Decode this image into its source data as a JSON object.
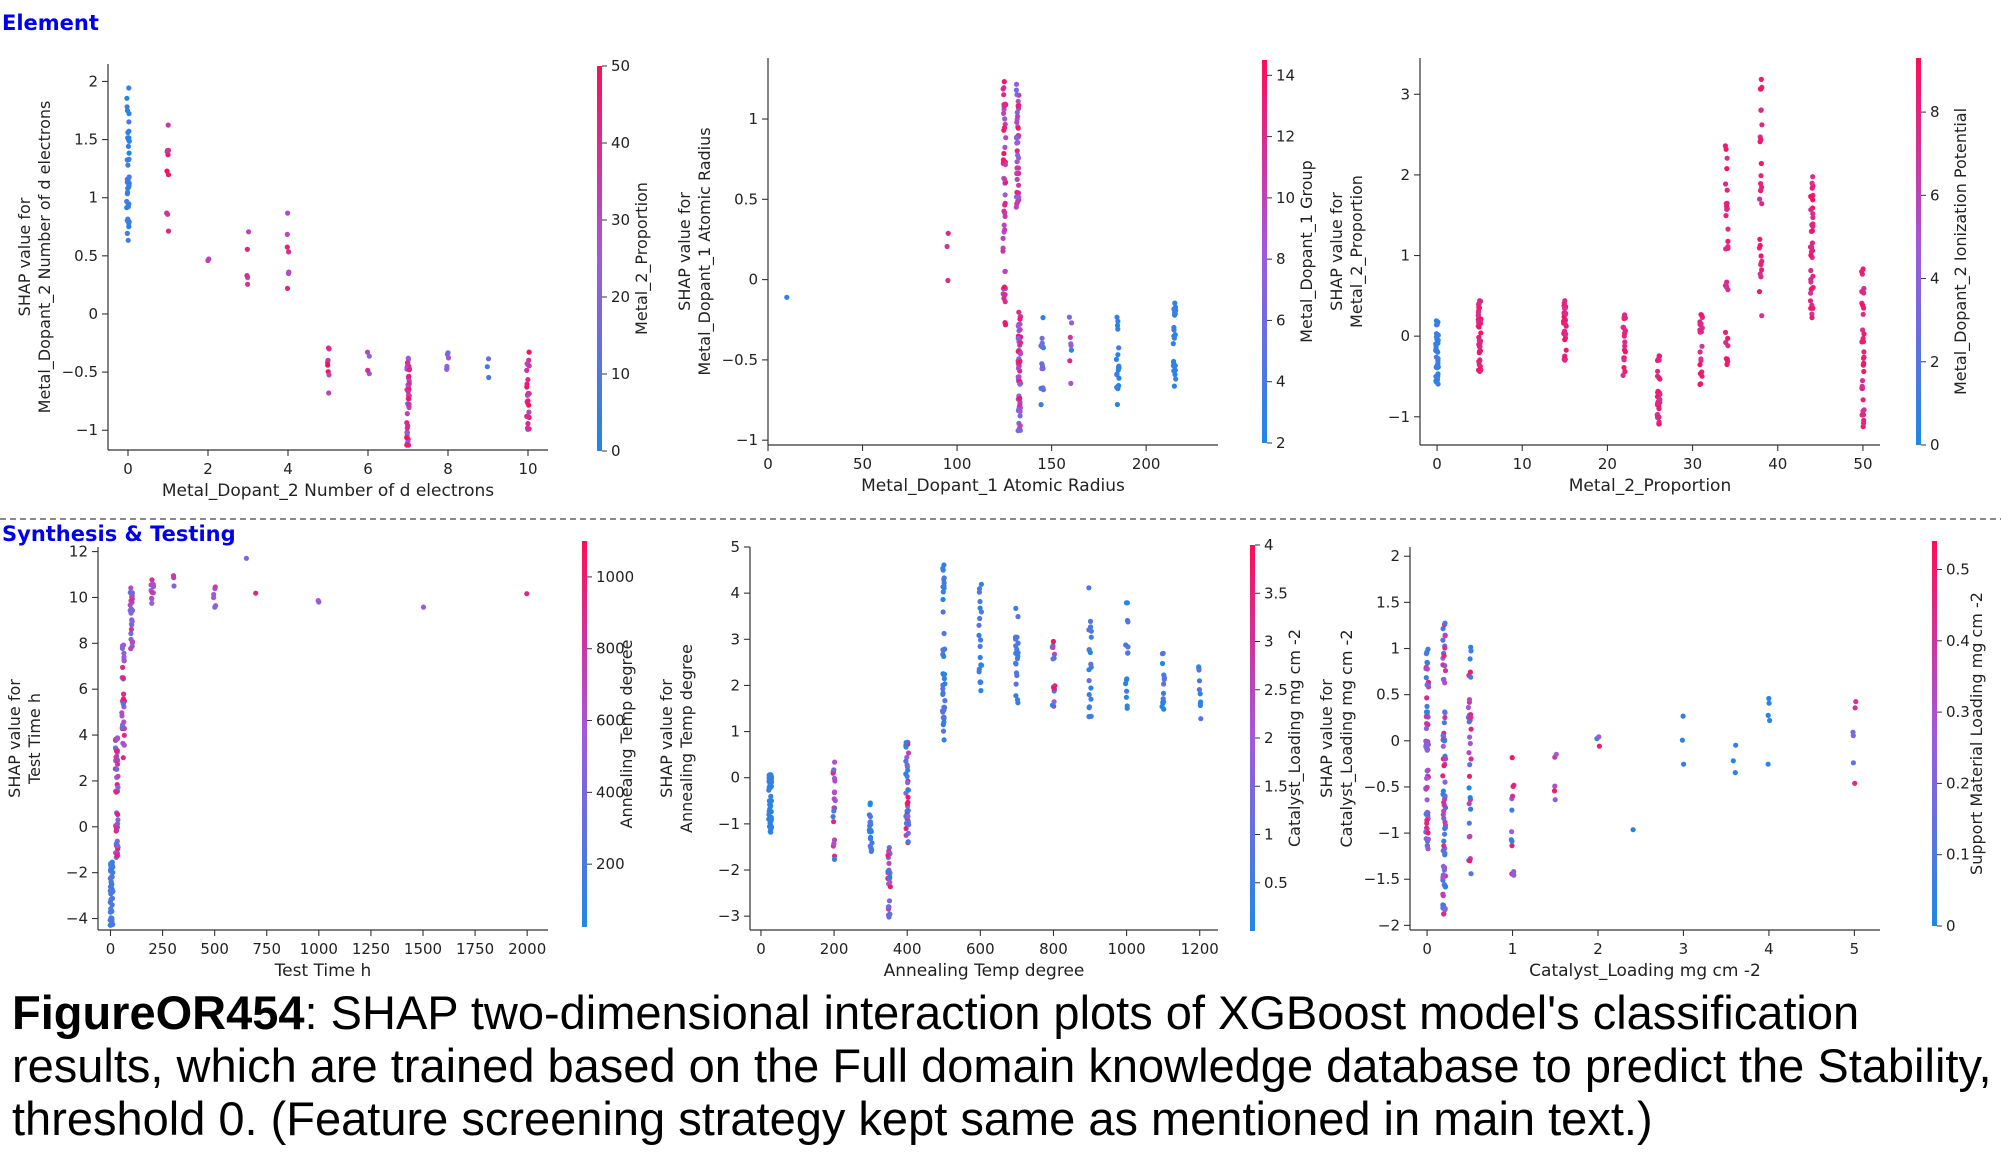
{
  "sections": [
    {
      "label": "Element",
      "color": "#0000ee"
    },
    {
      "label": "Synthesis & Testing",
      "color": "#0000ee"
    }
  ],
  "caption": {
    "bold": "FigureOR454",
    "text": ": SHAP two-dimensional interaction plots of XGBoost model's classification results, which are trained based on the Full domain knowledge database to predict the Stability, threshold 0. (Feature screening strategy kept same as mentioned in main text.)"
  },
  "colors": {
    "low": "#1e88e5",
    "high": "#ff0d57"
  },
  "chart_data": [
    {
      "type": "scatter",
      "xlabel": "Metal_Dopant_2 Number of d electrons",
      "ylabel": [
        "SHAP value for",
        "Metal_Dopant_2 Number of d electrons"
      ],
      "xlim": [
        -0.5,
        10.5
      ],
      "ylim": [
        -1.17,
        2.15
      ],
      "xticks": [
        0,
        2,
        4,
        6,
        8,
        10
      ],
      "yticks": [
        -1.0,
        -0.5,
        0.0,
        0.5,
        1.0,
        1.5,
        2.0
      ],
      "colorbar": {
        "label": "Metal_2_Proportion",
        "ticks": [
          0,
          10,
          20,
          30,
          40,
          50
        ],
        "range": [
          0,
          50
        ]
      },
      "clusters": [
        {
          "x": 0,
          "y": [
            0.5,
            1.95
          ],
          "c": [
            0,
            10
          ],
          "n": 40
        },
        {
          "x": 1,
          "y": [
            0.55,
            1.8
          ],
          "c": [
            30,
            50
          ],
          "n": 10
        },
        {
          "x": 2,
          "y": [
            0.45,
            0.52
          ],
          "c": [
            25,
            35
          ],
          "n": 2
        },
        {
          "x": 3,
          "y": [
            0.25,
            0.9
          ],
          "c": [
            25,
            45
          ],
          "n": 5
        },
        {
          "x": 4,
          "y": [
            0.15,
            0.88
          ],
          "c": [
            25,
            45
          ],
          "n": 7
        },
        {
          "x": 5,
          "y": [
            -0.7,
            -0.05
          ],
          "c": [
            30,
            50
          ],
          "n": 8
        },
        {
          "x": 6,
          "y": [
            -0.52,
            -0.32
          ],
          "c": [
            0,
            45
          ],
          "n": 4
        },
        {
          "x": 7,
          "y": [
            -1.15,
            -0.3
          ],
          "c": [
            15,
            50
          ],
          "n": 45
        },
        {
          "x": 8,
          "y": [
            -0.5,
            -0.32
          ],
          "c": [
            15,
            45
          ],
          "n": 6
        },
        {
          "x": 9,
          "y": [
            -0.55,
            -0.35
          ],
          "c": [
            5,
            20
          ],
          "n": 3
        },
        {
          "x": 10,
          "y": [
            -1.05,
            -0.3
          ],
          "c": [
            30,
            50
          ],
          "n": 25
        }
      ]
    },
    {
      "type": "scatter",
      "xlabel": "Metal_Dopant_1 Atomic Radius",
      "ylabel": [
        "SHAP value for",
        "Metal_Dopant_1 Atomic Radius"
      ],
      "xlim": [
        0,
        238
      ],
      "ylim": [
        -1.03,
        1.38
      ],
      "xticks": [
        0,
        50,
        100,
        150,
        200
      ],
      "yticks": [
        -1.0,
        -0.5,
        0.0,
        0.5,
        1.0
      ],
      "colorbar": {
        "label": "Metal_Dopant_1 Group",
        "ticks": [
          2,
          4,
          6,
          8,
          10,
          12,
          14
        ],
        "range": [
          2,
          14.5
        ]
      },
      "clusters": [
        {
          "x": 10,
          "y": [
            -0.14,
            -0.1
          ],
          "c": [
            2,
            3
          ],
          "n": 1
        },
        {
          "x": 95,
          "y": [
            -0.12,
            0.32
          ],
          "c": [
            11,
            13
          ],
          "n": 3
        },
        {
          "x": 125,
          "y": [
            -0.3,
            1.25
          ],
          "c": [
            8,
            14
          ],
          "n": 50
        },
        {
          "x": 132,
          "y": [
            0.45,
            1.28
          ],
          "c": [
            6,
            14
          ],
          "n": 40
        },
        {
          "x": 133,
          "y": [
            -0.95,
            -0.2
          ],
          "c": [
            6,
            14
          ],
          "n": 60
        },
        {
          "x": 145,
          "y": [
            -0.8,
            -0.2
          ],
          "c": [
            2,
            8
          ],
          "n": 15
        },
        {
          "x": 160,
          "y": [
            -0.65,
            -0.2
          ],
          "c": [
            2,
            14
          ],
          "n": 8
        },
        {
          "x": 185,
          "y": [
            -0.82,
            -0.2
          ],
          "c": [
            2,
            4
          ],
          "n": 20
        },
        {
          "x": 215,
          "y": [
            -0.82,
            -0.12
          ],
          "c": [
            2,
            4
          ],
          "n": 25
        }
      ]
    },
    {
      "type": "scatter",
      "xlabel": "Metal_2_Proportion",
      "ylabel": [
        "SHAP value for",
        "Metal_2_Proportion"
      ],
      "xlim": [
        -2,
        52
      ],
      "ylim": [
        -1.35,
        3.45
      ],
      "xticks": [
        0,
        10,
        20,
        30,
        40,
        50
      ],
      "yticks": [
        -1,
        0,
        1,
        2,
        3
      ],
      "colorbar": {
        "label": "Metal_Dopant_2 Ionization Potential",
        "ticks": [
          0,
          2,
          4,
          6,
          8
        ],
        "range": [
          0,
          9.3
        ]
      },
      "clusters": [
        {
          "x": 0,
          "y": [
            -0.6,
            0.22
          ],
          "c": [
            0,
            2
          ],
          "n": 35
        },
        {
          "x": 5,
          "y": [
            -0.45,
            0.45
          ],
          "c": [
            7,
            9
          ],
          "n": 40
        },
        {
          "x": 15,
          "y": [
            -0.3,
            0.45
          ],
          "c": [
            7,
            9
          ],
          "n": 30
        },
        {
          "x": 22,
          "y": [
            -0.5,
            0.3
          ],
          "c": [
            7,
            9
          ],
          "n": 20
        },
        {
          "x": 26,
          "y": [
            -1.1,
            -0.2
          ],
          "c": [
            7,
            9
          ],
          "n": 35
        },
        {
          "x": 31,
          "y": [
            -0.6,
            0.3
          ],
          "c": [
            7,
            9
          ],
          "n": 20
        },
        {
          "x": 34,
          "y": [
            -0.4,
            2.4
          ],
          "c": [
            7,
            9
          ],
          "n": 30
        },
        {
          "x": 38,
          "y": [
            0.2,
            3.25
          ],
          "c": [
            7,
            9
          ],
          "n": 30
        },
        {
          "x": 44,
          "y": [
            0.2,
            2.0
          ],
          "c": [
            7,
            9
          ],
          "n": 40
        },
        {
          "x": 50,
          "y": [
            -1.15,
            0.85
          ],
          "c": [
            7,
            9
          ],
          "n": 35
        }
      ]
    },
    {
      "type": "scatter",
      "xlabel": "Test Time h",
      "ylabel": [
        "SHAP value for",
        "Test Time h"
      ],
      "xlim": [
        -60,
        2100
      ],
      "ylim": [
        -4.5,
        12.2
      ],
      "xticks": [
        0,
        250,
        500,
        750,
        1000,
        1250,
        1500,
        1750,
        2000
      ],
      "yticks": [
        -4,
        -2,
        0,
        2,
        4,
        6,
        8,
        10,
        12
      ],
      "colorbar": {
        "label": "Annealing Temp degree",
        "ticks": [
          200,
          400,
          600,
          800,
          1000
        ],
        "range": [
          25,
          1100
        ]
      },
      "clusters": [
        {
          "x": 5,
          "y": [
            -4.3,
            -1.5
          ],
          "c": [
            25,
            300
          ],
          "n": 50
        },
        {
          "x": 30,
          "y": [
            -1.5,
            4
          ],
          "c": [
            200,
            1000
          ],
          "n": 50
        },
        {
          "x": 60,
          "y": [
            3,
            8
          ],
          "c": [
            200,
            1000
          ],
          "n": 30
        },
        {
          "x": 100,
          "y": [
            7.5,
            10.5
          ],
          "c": [
            300,
            900
          ],
          "n": 25
        },
        {
          "x": 200,
          "y": [
            9.5,
            10.8
          ],
          "c": [
            400,
            900
          ],
          "n": 10
        },
        {
          "x": 300,
          "y": [
            10,
            11
          ],
          "c": [
            400,
            800
          ],
          "n": 3
        },
        {
          "x": 500,
          "y": [
            9.5,
            10.5
          ],
          "c": [
            400,
            800
          ],
          "n": 6
        },
        {
          "x": 650,
          "y": [
            11.5,
            11.8
          ],
          "c": [
            300,
            500
          ],
          "n": 1
        },
        {
          "x": 700,
          "y": [
            10.1,
            10.3
          ],
          "c": [
            800,
            1000
          ],
          "n": 1
        },
        {
          "x": 1000,
          "y": [
            9.6,
            9.9
          ],
          "c": [
            400,
            600
          ],
          "n": 2
        },
        {
          "x": 1500,
          "y": [
            9.5,
            9.7
          ],
          "c": [
            500,
            600
          ],
          "n": 1
        },
        {
          "x": 2000,
          "y": [
            10.1,
            10.2
          ],
          "c": [
            900,
            1000
          ],
          "n": 1
        }
      ]
    },
    {
      "type": "scatter",
      "xlabel": "Annealing Temp degree",
      "ylabel": [
        "SHAP value for",
        "Annealing Temp degree"
      ],
      "xlim": [
        -30,
        1250
      ],
      "ylim": [
        -3.3,
        5.0
      ],
      "xticks": [
        0,
        200,
        400,
        600,
        800,
        1000,
        1200
      ],
      "yticks": [
        -3,
        -2,
        -1,
        0,
        1,
        2,
        3,
        4,
        5
      ],
      "colorbar": {
        "label": "Catalyst_Loading mg cm -2",
        "ticks": [
          0.5,
          1.0,
          1.5,
          2.0,
          2.5,
          3.0,
          3.5,
          4.0
        ],
        "range": [
          0,
          4.0
        ]
      },
      "clusters": [
        {
          "x": 25,
          "y": [
            -1.2,
            0.1
          ],
          "c": [
            0,
            0.6
          ],
          "n": 50
        },
        {
          "x": 200,
          "y": [
            -1.8,
            0.4
          ],
          "c": [
            0,
            4
          ],
          "n": 20
        },
        {
          "x": 300,
          "y": [
            -1.6,
            -0.5
          ],
          "c": [
            0,
            1
          ],
          "n": 20
        },
        {
          "x": 350,
          "y": [
            -3.1,
            -1.5
          ],
          "c": [
            0,
            4
          ],
          "n": 25
        },
        {
          "x": 400,
          "y": [
            -1.5,
            0.9
          ],
          "c": [
            0,
            4
          ],
          "n": 40
        },
        {
          "x": 500,
          "y": [
            0.8,
            4.7
          ],
          "c": [
            0,
            1
          ],
          "n": 40
        },
        {
          "x": 600,
          "y": [
            1.3,
            4.2
          ],
          "c": [
            0,
            1
          ],
          "n": 20
        },
        {
          "x": 700,
          "y": [
            1.5,
            3.8
          ],
          "c": [
            0,
            1
          ],
          "n": 20
        },
        {
          "x": 800,
          "y": [
            1.5,
            3.1
          ],
          "c": [
            0,
            4
          ],
          "n": 15
        },
        {
          "x": 900,
          "y": [
            0.9,
            4.2
          ],
          "c": [
            0,
            1
          ],
          "n": 20
        },
        {
          "x": 1000,
          "y": [
            1.5,
            3.8
          ],
          "c": [
            0,
            1
          ],
          "n": 15
        },
        {
          "x": 1100,
          "y": [
            1.3,
            2.7
          ],
          "c": [
            0,
            1
          ],
          "n": 15
        },
        {
          "x": 1200,
          "y": [
            1.2,
            2.5
          ],
          "c": [
            0,
            1
          ],
          "n": 10
        }
      ]
    },
    {
      "type": "scatter",
      "xlabel": "Catalyst_Loading mg cm -2",
      "ylabel": [
        "SHAP value for",
        "Catalyst_Loading mg cm -2"
      ],
      "xlim": [
        -0.2,
        5.3
      ],
      "ylim": [
        -2.05,
        2.1
      ],
      "xticks": [
        0,
        1,
        2,
        3,
        4,
        5
      ],
      "yticks": [
        -2.0,
        -1.5,
        -1.0,
        -0.5,
        0.0,
        0.5,
        1.0,
        1.5,
        2.0
      ],
      "colorbar": {
        "label": "Support Material Loading mg cm -2",
        "ticks": [
          0.0,
          0.1,
          0.2,
          0.3,
          0.4,
          0.5
        ],
        "range": [
          0,
          0.54
        ]
      },
      "clusters": [
        {
          "x": 0.0,
          "y": [
            -1.2,
            1.0
          ],
          "c": [
            0,
            0.5
          ],
          "n": 60
        },
        {
          "x": 0.2,
          "y": [
            -1.9,
            1.3
          ],
          "c": [
            0,
            0.5
          ],
          "n": 80
        },
        {
          "x": 0.5,
          "y": [
            -1.5,
            1.2
          ],
          "c": [
            0,
            0.5
          ],
          "n": 35
        },
        {
          "x": 1.0,
          "y": [
            -1.5,
            0.3
          ],
          "c": [
            0,
            0.5
          ],
          "n": 15
        },
        {
          "x": 1.5,
          "y": [
            -0.7,
            0.1
          ],
          "c": [
            0.2,
            0.5
          ],
          "n": 5
        },
        {
          "x": 2.0,
          "y": [
            -0.3,
            0.4
          ],
          "c": [
            0,
            0.5
          ],
          "n": 3
        },
        {
          "x": 2.4,
          "y": [
            -1.0,
            -0.95
          ],
          "c": [
            0,
            0.05
          ],
          "n": 1
        },
        {
          "x": 3.0,
          "y": [
            -0.4,
            0.35
          ],
          "c": [
            0,
            0.05
          ],
          "n": 3
        },
        {
          "x": 3.6,
          "y": [
            -0.4,
            0.45
          ],
          "c": [
            0,
            0.05
          ],
          "n": 3
        },
        {
          "x": 4.0,
          "y": [
            -0.4,
            0.75
          ],
          "c": [
            0,
            0.05
          ],
          "n": 5
        },
        {
          "x": 5.0,
          "y": [
            -0.7,
            0.5
          ],
          "c": [
            0,
            0.5
          ],
          "n": 6
        }
      ]
    }
  ]
}
